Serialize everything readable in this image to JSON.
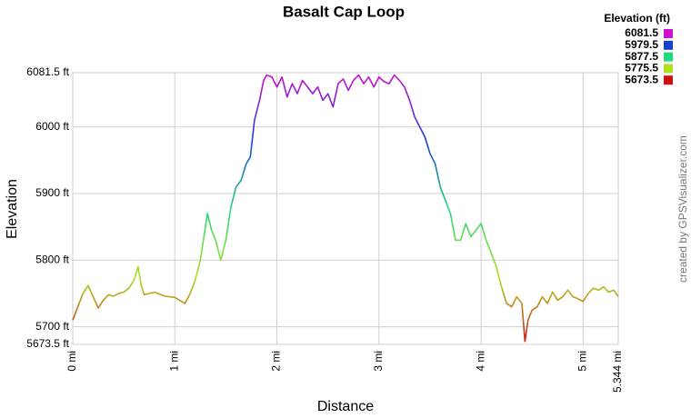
{
  "chart_data": {
    "type": "line",
    "title": "Basalt Cap Loop",
    "x_label": "Distance",
    "y_label": "Elevation",
    "watermark": "created by GPSVisualizer.com",
    "legend_title": "Elevation (ft)",
    "legend": [
      {
        "value": 6081.5,
        "color": "#d010d0"
      },
      {
        "value": 5979.5,
        "color": "#1840d0"
      },
      {
        "value": 5877.5,
        "color": "#20d880"
      },
      {
        "value": 5775.5,
        "color": "#b0e020"
      },
      {
        "value": 5673.5,
        "color": "#d01010"
      }
    ],
    "grid": true,
    "xlim": [
      0,
      5.344
    ],
    "ylim": [
      5673.5,
      6081.5
    ],
    "xticks": [
      {
        "value": 0,
        "label": "0 mi"
      },
      {
        "value": 1,
        "label": "1 mi"
      },
      {
        "value": 2,
        "label": "2 mi"
      },
      {
        "value": 3,
        "label": "3 mi"
      },
      {
        "value": 4,
        "label": "4 mi"
      },
      {
        "value": 5,
        "label": "5 mi"
      },
      {
        "value": 5.344,
        "label": "5.344 mi"
      }
    ],
    "yticks": [
      {
        "value": 5673.5,
        "label": "5673.5 ft"
      },
      {
        "value": 5700,
        "label": "5700 ft"
      },
      {
        "value": 5800,
        "label": "5800 ft"
      },
      {
        "value": 5900,
        "label": "5900 ft"
      },
      {
        "value": 6000,
        "label": "6000 ft"
      },
      {
        "value": 6081.5,
        "label": "6081.5 ft"
      }
    ],
    "x": [
      0,
      0.05,
      0.1,
      0.15,
      0.2,
      0.25,
      0.3,
      0.35,
      0.4,
      0.45,
      0.5,
      0.55,
      0.6,
      0.64,
      0.67,
      0.7,
      0.8,
      0.9,
      1.0,
      1.1,
      1.15,
      1.2,
      1.25,
      1.28,
      1.32,
      1.36,
      1.4,
      1.45,
      1.5,
      1.55,
      1.6,
      1.65,
      1.7,
      1.74,
      1.78,
      1.83,
      1.87,
      1.9,
      1.95,
      2.0,
      2.05,
      2.1,
      2.15,
      2.2,
      2.25,
      2.3,
      2.35,
      2.4,
      2.45,
      2.5,
      2.55,
      2.6,
      2.65,
      2.7,
      2.75,
      2.8,
      2.85,
      2.9,
      2.95,
      3.0,
      3.05,
      3.1,
      3.15,
      3.2,
      3.25,
      3.3,
      3.35,
      3.4,
      3.45,
      3.5,
      3.55,
      3.6,
      3.65,
      3.7,
      3.75,
      3.8,
      3.85,
      3.9,
      3.95,
      4.0,
      4.05,
      4.1,
      4.15,
      4.2,
      4.25,
      4.3,
      4.35,
      4.4,
      4.43,
      4.46,
      4.5,
      4.55,
      4.6,
      4.65,
      4.7,
      4.75,
      4.8,
      4.85,
      4.9,
      4.95,
      5.0,
      5.05,
      5.1,
      5.15,
      5.2,
      5.25,
      5.3,
      5.344
    ],
    "series": [
      {
        "name": "Elevation",
        "values": [
          5710,
          5730,
          5750,
          5762,
          5745,
          5728,
          5740,
          5748,
          5746,
          5750,
          5752,
          5758,
          5770,
          5790,
          5762,
          5748,
          5752,
          5746,
          5744,
          5735,
          5750,
          5770,
          5800,
          5830,
          5870,
          5845,
          5830,
          5800,
          5830,
          5880,
          5910,
          5920,
          5945,
          5955,
          6010,
          6040,
          6070,
          6078,
          6075,
          6060,
          6075,
          6045,
          6065,
          6050,
          6070,
          6060,
          6050,
          6060,
          6040,
          6050,
          6030,
          6065,
          6072,
          6055,
          6070,
          6078,
          6065,
          6075,
          6060,
          6075,
          6068,
          6065,
          6078,
          6070,
          6060,
          6040,
          6015,
          6000,
          5985,
          5960,
          5945,
          5910,
          5890,
          5870,
          5830,
          5830,
          5855,
          5835,
          5845,
          5855,
          5830,
          5810,
          5790,
          5760,
          5735,
          5730,
          5745,
          5735,
          5678,
          5710,
          5725,
          5730,
          5745,
          5735,
          5752,
          5740,
          5745,
          5755,
          5745,
          5742,
          5738,
          5750,
          5758,
          5755,
          5760,
          5752,
          5755,
          5745
        ]
      }
    ]
  }
}
